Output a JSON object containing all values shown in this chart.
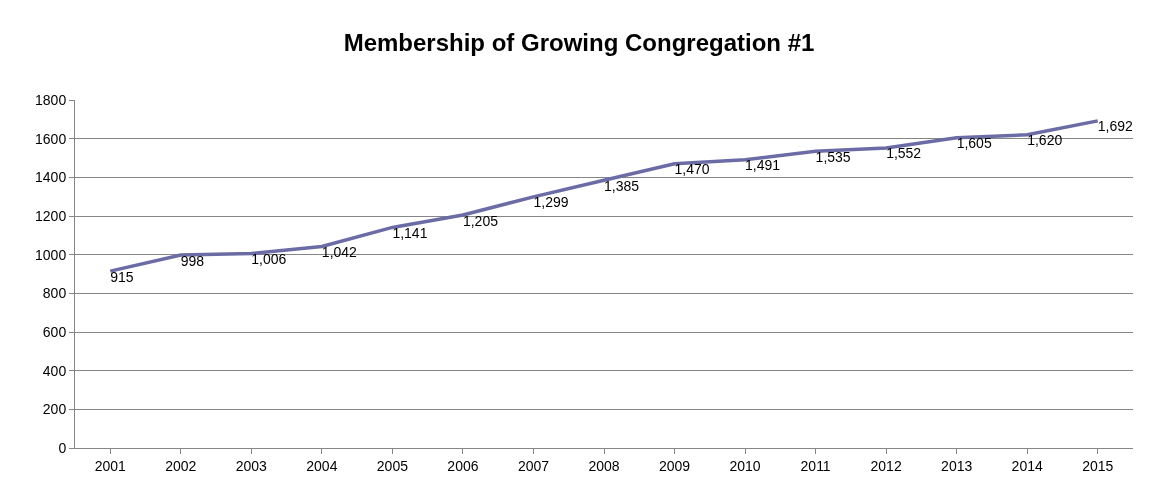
{
  "chart_data": {
    "type": "line",
    "title": "Membership of Growing Congregation #1",
    "categories": [
      "2001",
      "2002",
      "2003",
      "2004",
      "2005",
      "2006",
      "2007",
      "2008",
      "2009",
      "2010",
      "2011",
      "2012",
      "2013",
      "2014",
      "2015"
    ],
    "values": [
      915,
      998,
      1006,
      1042,
      1141,
      1205,
      1299,
      1385,
      1470,
      1491,
      1535,
      1552,
      1605,
      1620,
      1692
    ],
    "value_labels": [
      "915",
      "998",
      "1,006",
      "1,042",
      "1,141",
      "1,205",
      "1,299",
      "1,385",
      "1,470",
      "1,491",
      "1,535",
      "1,552",
      "1,605",
      "1,620",
      "1,692"
    ],
    "color": "#6b6ba6",
    "ylim": [
      0,
      1800
    ],
    "yticks": [
      0,
      200,
      400,
      600,
      800,
      1000,
      1200,
      1400,
      1600,
      1800
    ],
    "grid": "y",
    "legend": false,
    "marker": "none",
    "line_style": "solid"
  }
}
